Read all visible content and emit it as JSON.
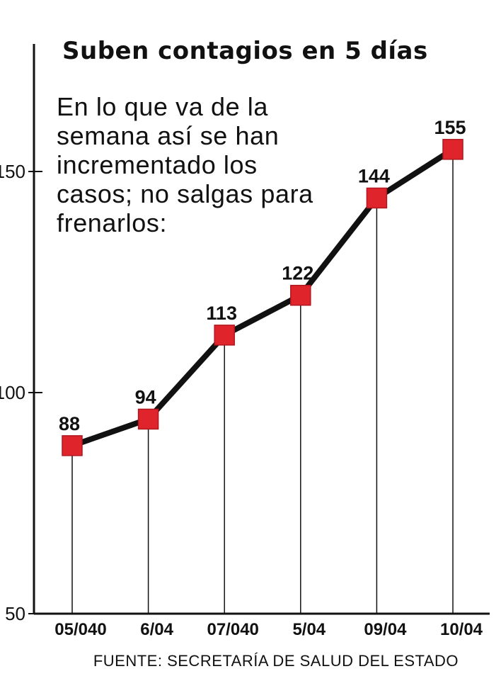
{
  "chart_data": {
    "type": "line",
    "title": "Suben contagios en 5 días",
    "subtitle": "En lo que va de la semana así se han incrementado los casos; no salgas para frenarlos:",
    "source": "FUENTE: SECRETARÍA DE SALUD DEL ESTADO",
    "categories": [
      "05/040",
      "6/04",
      "07/040",
      "5/04",
      "09/04",
      "10/04"
    ],
    "values": [
      88,
      94,
      113,
      122,
      144,
      155
    ],
    "data_labels": [
      "88",
      "94",
      "113",
      "122",
      "144",
      "155"
    ],
    "yticks": [
      50,
      100,
      150
    ],
    "ytick_labels": [
      "50",
      "100",
      "150"
    ],
    "ylim": [
      50,
      179
    ],
    "grid": false,
    "legend": "none",
    "colors": {
      "line": "#111111",
      "marker": "#e0242c",
      "marker_border": "#b01820",
      "axis": "#111111"
    }
  }
}
